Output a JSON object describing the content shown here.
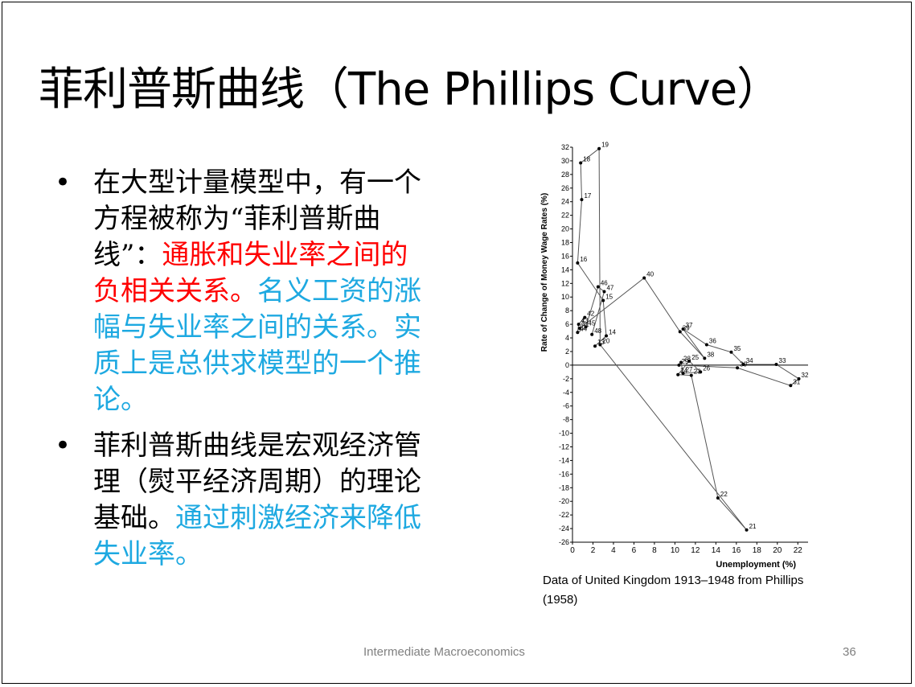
{
  "slide": {
    "title": "菲利普斯曲线（The Phillips Curve）",
    "bullet1": {
      "black": "在大型计量模型中，有一个方程被称为“菲利普斯曲线”：",
      "red": "通胀和失业率之间的负相关关系。",
      "blue": "名义工资的涨幅与失业率之间的关系。实质上是总供求模型的一个推论。"
    },
    "bullet2": {
      "black": "菲利普斯曲线是宏观经济管理（熨平经济周期）的理论基础。",
      "blue": "通过刺激经济来降低失业率。"
    },
    "caption": "Data of United Kingdom 1913–1948 from Phillips (1958)",
    "footer_text": "Intermediate Macroeconomics",
    "page_number": "36"
  },
  "chart_data": {
    "type": "scatter",
    "connected": true,
    "xlabel": "Unemployment (%)",
    "ylabel": "Rate of Change of Money Wage Rates (%)",
    "xlim": [
      0,
      23
    ],
    "ylim": [
      -26,
      32
    ],
    "xticks": [
      0,
      2,
      4,
      6,
      8,
      10,
      12,
      14,
      16,
      18,
      20,
      22
    ],
    "yticks": [
      32,
      30,
      28,
      26,
      24,
      22,
      20,
      18,
      16,
      14,
      12,
      10,
      8,
      6,
      4,
      2,
      0,
      -2,
      -4,
      -6,
      -8,
      -10,
      -12,
      -14,
      -16,
      -18,
      -20,
      -22,
      -24,
      -26
    ],
    "points": [
      {
        "label": "13",
        "x": 2.2,
        "y": 2.8
      },
      {
        "label": "14",
        "x": 3.3,
        "y": 4.3
      },
      {
        "label": "15",
        "x": 3.0,
        "y": 9.5
      },
      {
        "label": "16",
        "x": 0.5,
        "y": 15.0
      },
      {
        "label": "17",
        "x": 0.9,
        "y": 24.3
      },
      {
        "label": "18",
        "x": 0.8,
        "y": 29.7
      },
      {
        "label": "19",
        "x": 2.6,
        "y": 31.8
      },
      {
        "label": "20",
        "x": 2.7,
        "y": 3.0
      },
      {
        "label": "21",
        "x": 17.0,
        "y": -24.2
      },
      {
        "label": "22",
        "x": 14.2,
        "y": -19.5
      },
      {
        "label": "23",
        "x": 11.6,
        "y": -1.5
      },
      {
        "label": "24",
        "x": 10.3,
        "y": -1.4
      },
      {
        "label": "25",
        "x": 11.4,
        "y": 0.6
      },
      {
        "label": "26",
        "x": 12.5,
        "y": -1.0
      },
      {
        "label": "27",
        "x": 10.8,
        "y": -1.2
      },
      {
        "label": "28",
        "x": 10.6,
        "y": 0.4
      },
      {
        "label": "29",
        "x": 10.4,
        "y": 0.0
      },
      {
        "label": "30",
        "x": 16.1,
        "y": -0.4
      },
      {
        "label": "31",
        "x": 21.3,
        "y": -3.0
      },
      {
        "label": "32",
        "x": 22.1,
        "y": -2.0
      },
      {
        "label": "33",
        "x": 19.9,
        "y": 0.1
      },
      {
        "label": "34",
        "x": 16.7,
        "y": 0.1
      },
      {
        "label": "35",
        "x": 15.5,
        "y": 1.9
      },
      {
        "label": "36",
        "x": 13.1,
        "y": 3.0
      },
      {
        "label": "37",
        "x": 10.8,
        "y": 5.3
      },
      {
        "label": "38",
        "x": 12.9,
        "y": 1.0
      },
      {
        "label": "39",
        "x": 10.5,
        "y": 4.9
      },
      {
        "label": "40",
        "x": 7.0,
        "y": 12.8
      },
      {
        "label": "41",
        "x": 0.7,
        "y": 5.4
      },
      {
        "label": "42",
        "x": 1.2,
        "y": 7.0
      },
      {
        "label": "43",
        "x": 0.6,
        "y": 6.0
      },
      {
        "label": "44",
        "x": 0.5,
        "y": 4.8
      },
      {
        "label": "45",
        "x": 1.3,
        "y": 5.6
      },
      {
        "label": "46",
        "x": 2.5,
        "y": 11.5
      },
      {
        "label": "47",
        "x": 3.1,
        "y": 10.8
      },
      {
        "label": "48",
        "x": 1.9,
        "y": 4.5
      }
    ],
    "path_order": [
      "13",
      "14",
      "15",
      "16",
      "17",
      "18",
      "19",
      "20",
      "21",
      "22",
      "23",
      "24",
      "25",
      "26",
      "27",
      "28",
      "29",
      "30",
      "31",
      "32",
      "33",
      "34",
      "35",
      "36",
      "37",
      "38",
      "39",
      "40",
      "41",
      "42",
      "43",
      "44",
      "45",
      "46",
      "47",
      "48"
    ]
  }
}
